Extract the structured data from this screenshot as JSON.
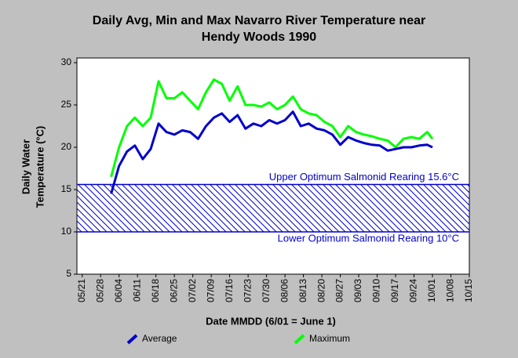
{
  "chart_data": {
    "type": "line",
    "title": [
      "Daily Avg, Min and Max Navarro River Temperature near",
      "Hendy Woods 1990"
    ],
    "xlabel": "Date MMDD (6/01 = June 1)",
    "ylabel": [
      "Daily Water",
      "Temperature (°C)"
    ],
    "x": [
      "06/01",
      "06/04",
      "06/07",
      "06/10",
      "06/13",
      "06/16",
      "06/19",
      "06/22",
      "06/25",
      "06/28",
      "07/01",
      "07/04",
      "07/07",
      "07/10",
      "07/13",
      "07/16",
      "07/19",
      "07/22",
      "07/25",
      "07/28",
      "07/31",
      "08/03",
      "08/06",
      "08/09",
      "08/12",
      "08/15",
      "08/18",
      "08/21",
      "08/24",
      "08/27",
      "08/30",
      "09/02",
      "09/05",
      "09/08",
      "09/11",
      "09/14",
      "09/17",
      "09/20",
      "09/23",
      "09/26",
      "09/29",
      "10/01"
    ],
    "series": [
      {
        "name": "Average",
        "color": "#0000cc",
        "values": [
          14.5,
          17.8,
          19.5,
          20.2,
          18.6,
          19.8,
          22.8,
          21.8,
          21.5,
          22,
          21.8,
          21,
          22.5,
          23.5,
          24,
          23,
          23.8,
          22.2,
          22.8,
          22.5,
          23.2,
          22.8,
          23.2,
          24.2,
          22.5,
          22.8,
          22.2,
          22,
          21.5,
          20.3,
          21.2,
          20.8,
          20.5,
          20.3,
          20.2,
          19.6,
          19.8,
          20,
          20,
          20.2,
          20.3,
          20
        ]
      },
      {
        "name": "Maximum",
        "color": "#00ff00",
        "values": [
          16.5,
          20,
          22.5,
          23.5,
          22.5,
          23.5,
          27.8,
          25.8,
          25.8,
          26.5,
          25.5,
          24.5,
          26.5,
          28,
          27.5,
          25.5,
          27.2,
          25,
          25,
          24.8,
          25.3,
          24.5,
          25,
          26,
          24.5,
          24,
          23.8,
          23,
          22.5,
          21.2,
          22.5,
          21.8,
          21.5,
          21.3,
          21,
          20.8,
          20,
          21,
          21.2,
          21,
          21.8,
          21
        ]
      }
    ],
    "band": {
      "range": [
        10,
        15.6
      ],
      "color": "#0000cc",
      "labels": [
        "Upper Optimum Salmonid Rearing 15.6°C",
        "Lower Optimum Salmonid Rearing 10°C"
      ]
    },
    "xlim": [
      "05/19",
      "10/15"
    ],
    "xticks": [
      "05/21",
      "05/28",
      "06/04",
      "06/11",
      "06/18",
      "06/25",
      "07/02",
      "07/09",
      "07/16",
      "07/23",
      "07/30",
      "08/06",
      "08/13",
      "08/20",
      "08/27",
      "09/03",
      "09/10",
      "09/17",
      "09/24",
      "10/01",
      "10/08",
      "10/15"
    ],
    "ylim": [
      5,
      30
    ],
    "yticks": [
      5,
      10,
      15,
      20,
      25,
      30
    ]
  }
}
